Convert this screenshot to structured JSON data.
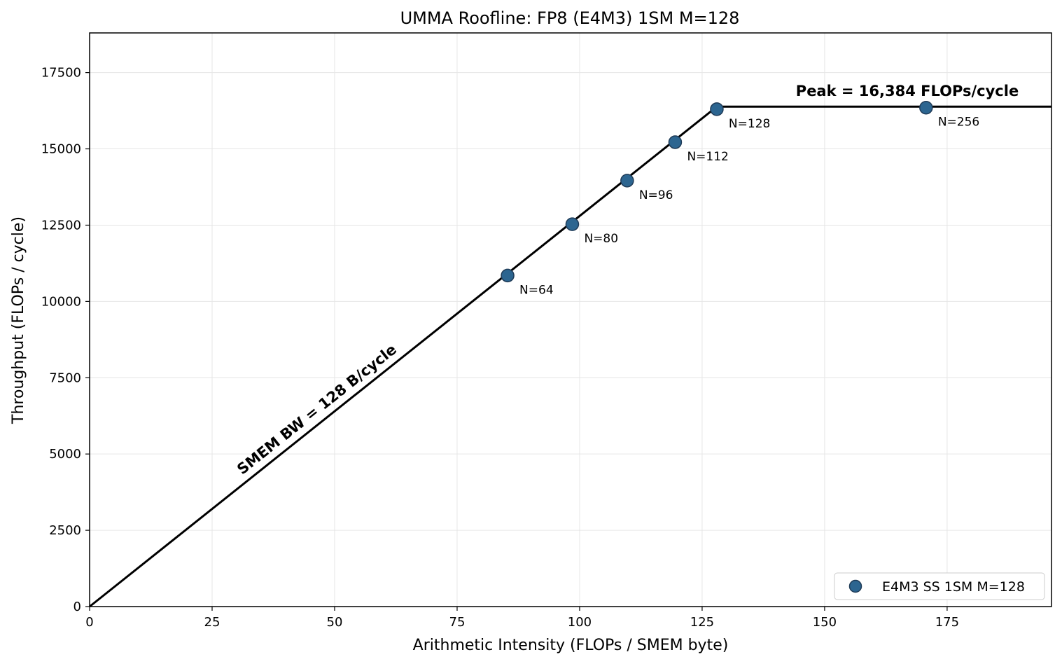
{
  "chart_data": {
    "type": "line",
    "title": "UMMA Roofline: FP8 (E4M3) 1SM M=128",
    "xlabel": "Arithmetic Intensity (FLOPs / SMEM byte)",
    "ylabel": "Throughput (FLOPs / cycle)",
    "xlim": [
      0,
      196.3
    ],
    "ylim": [
      0,
      18800
    ],
    "x_ticks": [
      0,
      25,
      50,
      75,
      100,
      125,
      150,
      175
    ],
    "y_ticks": [
      0,
      2500,
      5000,
      7500,
      10000,
      12500,
      15000,
      17500
    ],
    "grid": true,
    "legend_position": "lower-right",
    "roofline": {
      "bandwidth_label": "SMEM BW = 128 B/cycle",
      "bandwidth_bytes_per_cycle": 128,
      "peak_label": "Peak = 16,384 FLOPs/cycle",
      "peak_flops_per_cycle": 16384
    },
    "series": [
      {
        "name": "E4M3 SS 1SM M=128",
        "color": "#2c6590",
        "edge_color": "#1f3b57",
        "points": [
          {
            "label": "N=64",
            "x": 85.3,
            "y": 10850
          },
          {
            "label": "N=80",
            "x": 98.5,
            "y": 12530
          },
          {
            "label": "N=96",
            "x": 109.7,
            "y": 13960
          },
          {
            "label": "N=112",
            "x": 119.5,
            "y": 15220
          },
          {
            "label": "N=128",
            "x": 128.0,
            "y": 16300
          },
          {
            "label": "N=256",
            "x": 170.7,
            "y": 16350
          }
        ]
      }
    ]
  }
}
